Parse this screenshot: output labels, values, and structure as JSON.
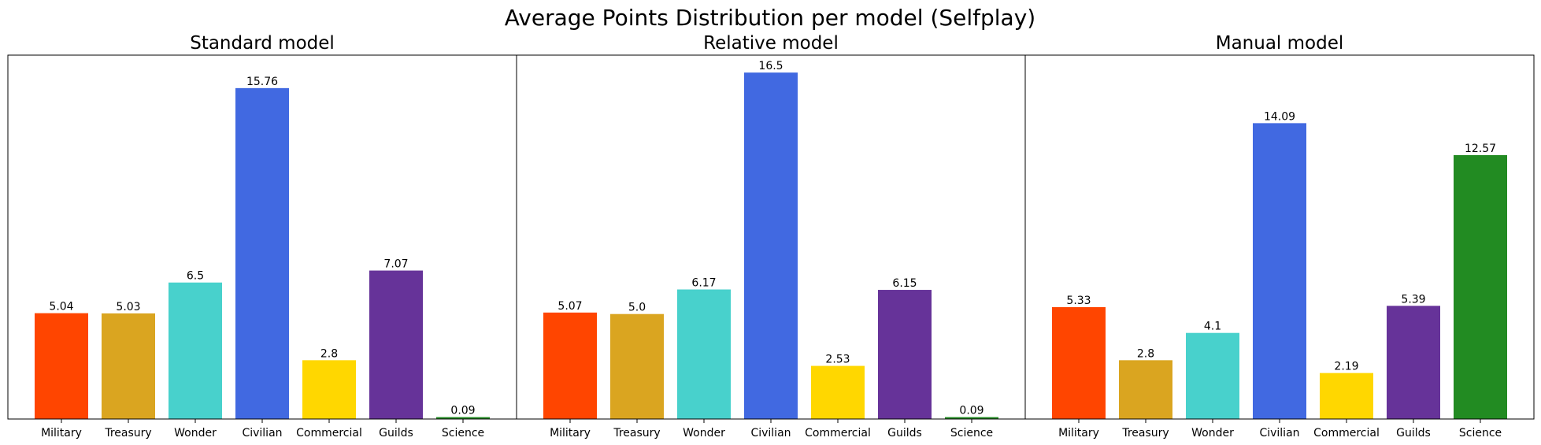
{
  "figure": {
    "title": "Average Points Distribution per model (Selfplay)"
  },
  "chart_data": [
    {
      "type": "bar",
      "title": "Standard model",
      "categories": [
        "Military",
        "Treasury",
        "Wonder",
        "Civilian",
        "Commercial",
        "Guilds",
        "Science"
      ],
      "values": [
        5.04,
        5.03,
        6.5,
        15.76,
        2.8,
        7.07,
        0.09
      ],
      "value_labels": [
        "5.04",
        "5.03",
        "6.5",
        "15.76",
        "2.8",
        "7.07",
        "0.09"
      ],
      "colors": [
        "#ff4500",
        "#daa520",
        "#48d1cc",
        "#4169e1",
        "#ffd700",
        "#663399",
        "#228b22"
      ],
      "ylim": [
        0,
        17.33
      ],
      "grid": false,
      "y_ticks_visible": false
    },
    {
      "type": "bar",
      "title": "Relative model",
      "categories": [
        "Military",
        "Treasury",
        "Wonder",
        "Civilian",
        "Commercial",
        "Guilds",
        "Science"
      ],
      "values": [
        5.07,
        5.0,
        6.17,
        16.5,
        2.53,
        6.15,
        0.09
      ],
      "value_labels": [
        "5.07",
        "5.0",
        "6.17",
        "16.5",
        "2.53",
        "6.15",
        "0.09"
      ],
      "colors": [
        "#ff4500",
        "#daa520",
        "#48d1cc",
        "#4169e1",
        "#ffd700",
        "#663399",
        "#228b22"
      ],
      "ylim": [
        0,
        17.33
      ],
      "grid": false,
      "y_ticks_visible": false
    },
    {
      "type": "bar",
      "title": "Manual model",
      "categories": [
        "Military",
        "Treasury",
        "Wonder",
        "Civilian",
        "Commercial",
        "Guilds",
        "Science"
      ],
      "values": [
        5.33,
        2.8,
        4.1,
        14.09,
        2.19,
        5.39,
        12.57
      ],
      "value_labels": [
        "5.33",
        "2.8",
        "4.1",
        "14.09",
        "2.19",
        "5.39",
        "12.57"
      ],
      "colors": [
        "#ff4500",
        "#daa520",
        "#48d1cc",
        "#4169e1",
        "#ffd700",
        "#663399",
        "#228b22"
      ],
      "ylim": [
        0,
        17.33
      ],
      "grid": false,
      "y_ticks_visible": false
    }
  ]
}
